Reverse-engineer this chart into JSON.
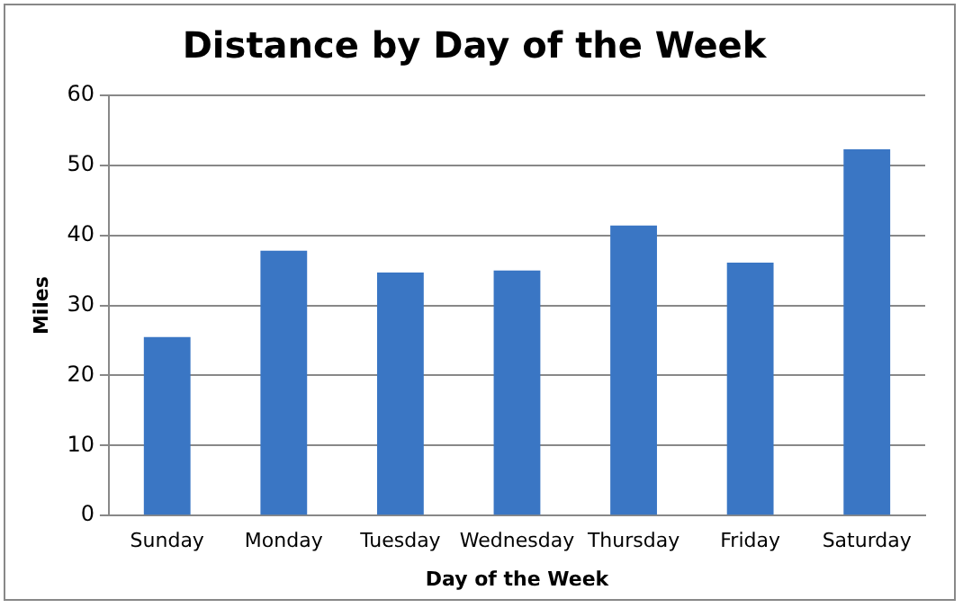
{
  "chart_data": {
    "type": "bar",
    "title": "Distance by Day of the Week",
    "xlabel": "Day of the Week",
    "ylabel": "Miles",
    "categories": [
      "Sunday",
      "Monday",
      "Tuesday",
      "Wednesday",
      "Thursday",
      "Friday",
      "Saturday"
    ],
    "values": [
      25.5,
      37.8,
      34.7,
      35.0,
      41.4,
      36.1,
      52.3
    ],
    "color": "#3a76c4",
    "ylim": [
      0,
      60
    ],
    "yticks": [
      0,
      10,
      20,
      30,
      40,
      50,
      60
    ],
    "grid": "y",
    "legend": false
  }
}
